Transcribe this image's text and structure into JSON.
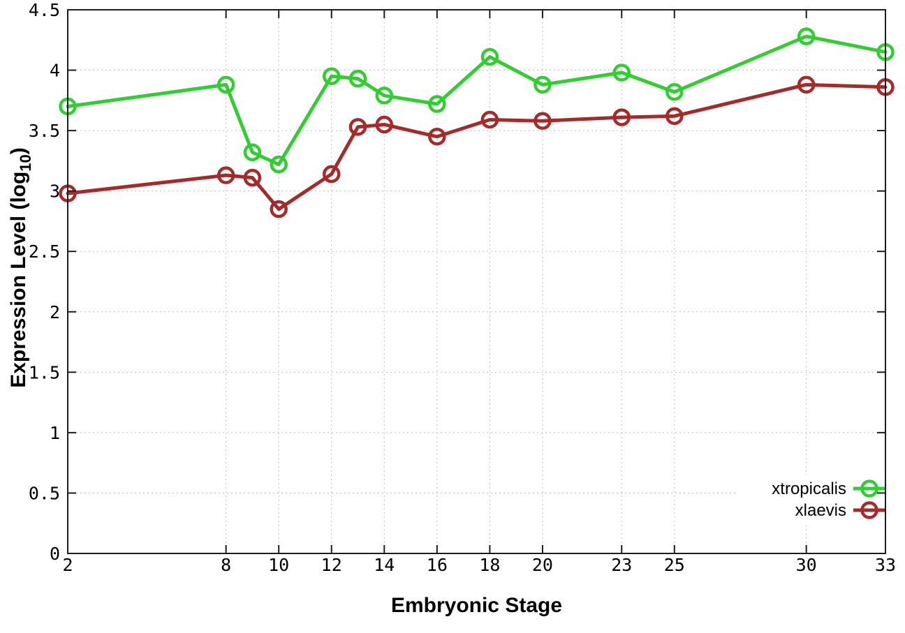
{
  "chart_data": {
    "type": "line",
    "title": "",
    "xlabel": "Embryonic Stage",
    "ylabel_prefix": "Expression Level (log",
    "ylabel_subscript": "10",
    "ylabel_suffix": ")",
    "x": [
      2,
      8,
      9,
      10,
      12,
      13,
      14,
      16,
      18,
      20,
      23,
      25,
      30,
      33
    ],
    "series": [
      {
        "name": "xtropicalis",
        "color": "#32cd32",
        "values": [
          3.7,
          3.88,
          3.32,
          3.22,
          3.95,
          3.93,
          3.79,
          3.72,
          4.11,
          3.88,
          3.98,
          3.82,
          4.28,
          4.15
        ]
      },
      {
        "name": "xlaevis",
        "color": "#a52a2a",
        "values": [
          2.98,
          3.13,
          3.11,
          2.85,
          3.14,
          3.53,
          3.55,
          3.45,
          3.59,
          3.58,
          3.61,
          3.62,
          3.88,
          3.86
        ]
      }
    ],
    "xlim": [
      2,
      33
    ],
    "ylim": [
      0,
      4.5
    ],
    "xticks": {
      "values": [
        2,
        8,
        10,
        12,
        14,
        16,
        18,
        20,
        23,
        25,
        30,
        33
      ],
      "labels": [
        "2",
        "8",
        "10",
        "12",
        "14",
        "16",
        "18",
        "20",
        "23",
        "25",
        "30",
        "33"
      ]
    },
    "yticks": {
      "values": [
        0,
        0.5,
        1,
        1.5,
        2,
        2.5,
        3,
        3.5,
        4,
        4.5
      ],
      "labels": [
        "0",
        "0.5",
        "1",
        "1.5",
        "2",
        "2.5",
        "3",
        "3.5",
        "4",
        "4.5"
      ]
    },
    "grid": true,
    "marker": "open-circle",
    "legend_position": "bottom-right",
    "legend_entries": [
      "xtropicalis",
      "xlaevis"
    ],
    "colors": {
      "background": "#ffffff",
      "border": "#1c1c1c",
      "grid": "#bdbdbd",
      "text": "#000000"
    }
  }
}
